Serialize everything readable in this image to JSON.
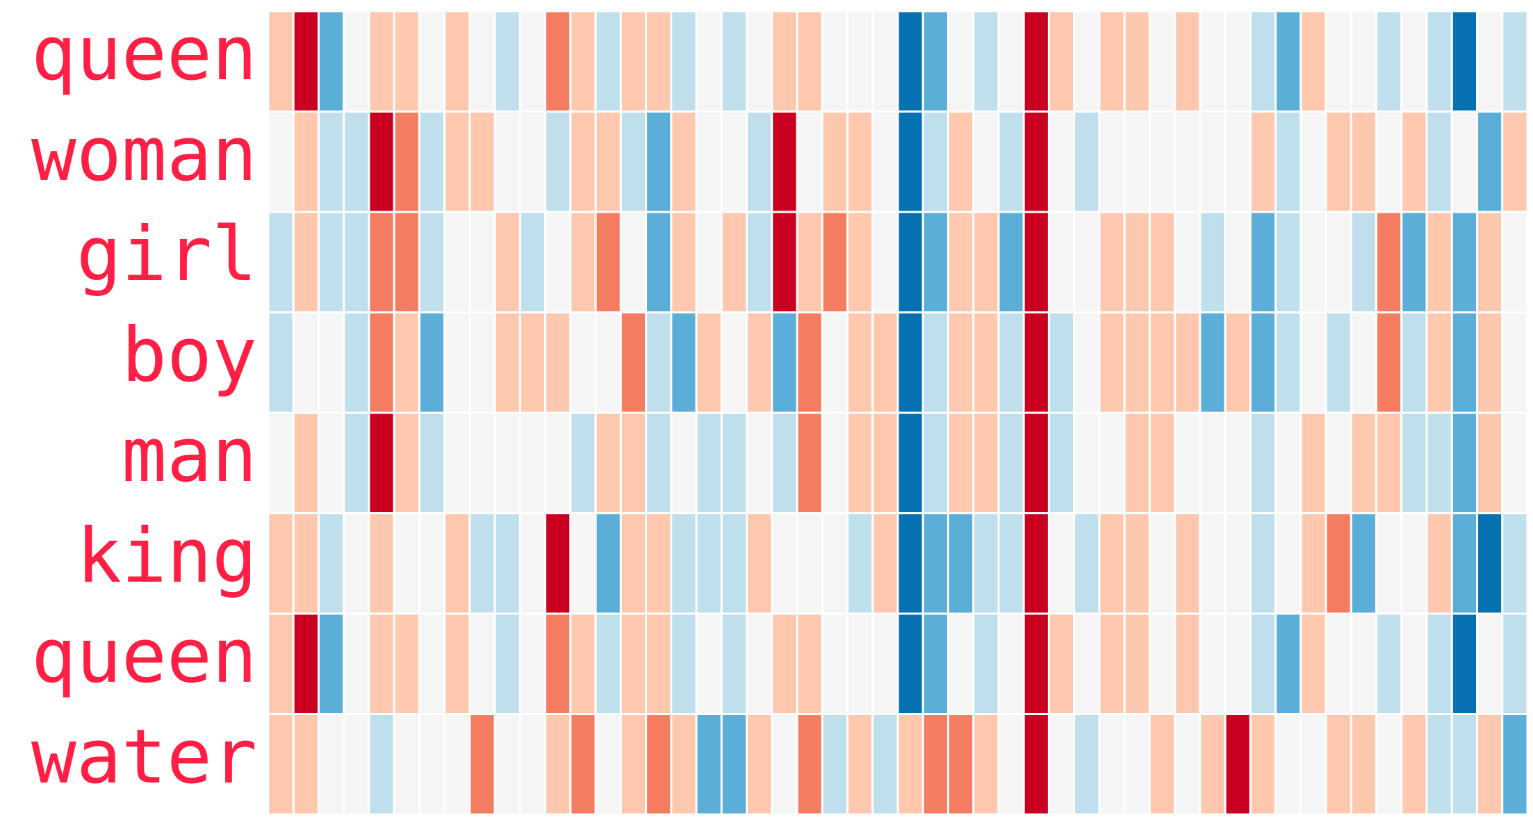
{
  "chart_data": {
    "type": "heatmap",
    "title": "",
    "xlabel": "",
    "ylabel": "",
    "rows": [
      "queen",
      "woman",
      "girl",
      "boy",
      "man",
      "king",
      "queen",
      "water"
    ],
    "columns": 50,
    "value_range": [
      -3,
      3
    ],
    "colormap": {
      "-3": "#0571b0",
      "-2": "#5aaed8",
      "-1": "#bfdfec",
      "0": "#f5f5f5",
      "1": "#fec8ae",
      "2": "#f47d61",
      "3": "#ca0020"
    },
    "label_color": "#ff1f45",
    "values": [
      [
        1,
        3,
        -2,
        0,
        1,
        1,
        0,
        1,
        0,
        -1,
        0,
        2,
        1,
        -1,
        1,
        1,
        -1,
        0,
        -1,
        0,
        1,
        1,
        0,
        0,
        0,
        -3,
        -2,
        0,
        -1,
        0,
        3,
        1,
        0,
        1,
        1,
        0,
        1,
        0,
        0,
        -1,
        -2,
        1,
        0,
        0,
        -1,
        0,
        -1,
        -3,
        0,
        -1
      ],
      [
        0,
        1,
        -1,
        -1,
        3,
        2,
        -1,
        1,
        1,
        0,
        0,
        -1,
        1,
        1,
        -1,
        -2,
        1,
        0,
        0,
        -1,
        3,
        0,
        1,
        1,
        0,
        -3,
        -1,
        1,
        0,
        -1,
        3,
        0,
        -1,
        0,
        0,
        0,
        0,
        0,
        0,
        1,
        -1,
        0,
        1,
        1,
        0,
        1,
        -1,
        0,
        -2,
        1
      ],
      [
        -1,
        1,
        -1,
        -1,
        2,
        2,
        -1,
        0,
        0,
        1,
        -1,
        0,
        1,
        2,
        0,
        -2,
        1,
        0,
        1,
        -1,
        3,
        1,
        2,
        1,
        0,
        -3,
        -2,
        1,
        1,
        -2,
        3,
        0,
        0,
        1,
        1,
        1,
        0,
        -1,
        0,
        -2,
        -1,
        0,
        0,
        -1,
        2,
        -2,
        1,
        -2,
        1,
        0
      ],
      [
        -1,
        0,
        0,
        -1,
        2,
        1,
        -2,
        0,
        0,
        1,
        1,
        1,
        0,
        0,
        2,
        -1,
        -2,
        1,
        0,
        1,
        -2,
        2,
        0,
        1,
        1,
        -3,
        -1,
        1,
        1,
        -1,
        3,
        -1,
        0,
        1,
        1,
        1,
        1,
        -2,
        1,
        -2,
        -1,
        0,
        -1,
        0,
        2,
        -1,
        1,
        -2,
        1,
        0
      ],
      [
        0,
        1,
        0,
        -1,
        3,
        1,
        -1,
        0,
        0,
        0,
        0,
        0,
        -1,
        1,
        1,
        -1,
        0,
        -1,
        -1,
        0,
        -1,
        2,
        0,
        1,
        1,
        -3,
        -1,
        1,
        1,
        -1,
        3,
        -1,
        0,
        0,
        1,
        1,
        0,
        0,
        0,
        -1,
        0,
        1,
        0,
        1,
        1,
        -1,
        -1,
        -2,
        1,
        0
      ],
      [
        1,
        1,
        -1,
        0,
        1,
        0,
        0,
        1,
        -1,
        -1,
        0,
        3,
        0,
        -2,
        1,
        1,
        -1,
        -1,
        -1,
        1,
        0,
        0,
        0,
        -1,
        1,
        -3,
        -2,
        -2,
        -1,
        -1,
        3,
        0,
        -1,
        1,
        1,
        0,
        1,
        0,
        0,
        -1,
        0,
        1,
        2,
        -2,
        0,
        0,
        1,
        -2,
        -3,
        -1
      ],
      [
        1,
        3,
        -2,
        0,
        1,
        1,
        0,
        1,
        0,
        -1,
        0,
        2,
        1,
        -1,
        1,
        1,
        -1,
        0,
        -1,
        0,
        1,
        1,
        0,
        0,
        0,
        -3,
        -2,
        0,
        -1,
        0,
        3,
        1,
        0,
        1,
        1,
        0,
        1,
        0,
        0,
        -1,
        -2,
        1,
        0,
        0,
        -1,
        0,
        -1,
        -3,
        0,
        -1
      ],
      [
        1,
        1,
        0,
        0,
        -1,
        0,
        0,
        0,
        2,
        0,
        0,
        1,
        2,
        0,
        1,
        2,
        1,
        -2,
        -2,
        1,
        0,
        2,
        -1,
        1,
        -1,
        1,
        2,
        2,
        1,
        0,
        3,
        0,
        -1,
        0,
        0,
        1,
        0,
        1,
        3,
        1,
        0,
        0,
        1,
        1,
        0,
        1,
        -1,
        -1,
        1,
        -2
      ]
    ]
  }
}
